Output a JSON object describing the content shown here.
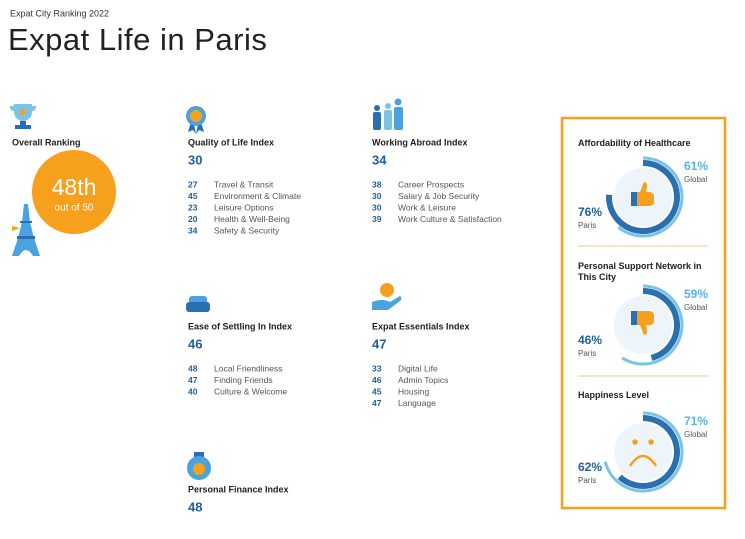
{
  "header": {
    "kicker": "Expat City Ranking 2022",
    "title": "Expat Life in Paris"
  },
  "overall": {
    "title": "Overall Ranking",
    "rank": "48th",
    "subtitle": "out of 50"
  },
  "indices": [
    {
      "title": "Quality of Life Index",
      "score": 30,
      "items": [
        {
          "score": 27,
          "label": "Travel & Transit"
        },
        {
          "score": 45,
          "label": "Environment & Climate"
        },
        {
          "score": 23,
          "label": "Leisure Options"
        },
        {
          "score": 20,
          "label": "Health & Well-Being"
        },
        {
          "score": 34,
          "label": "Safety & Security"
        }
      ]
    },
    {
      "title": "Working Abroad Index",
      "score": 34,
      "items": [
        {
          "score": 38,
          "label": "Career Prospects"
        },
        {
          "score": 30,
          "label": "Salary & Job Security"
        },
        {
          "score": 30,
          "label": "Work & Leisure"
        },
        {
          "score": 39,
          "label": "Work Culture & Satisfaction"
        }
      ]
    },
    {
      "title": "Ease of Settling In Index",
      "score": 46,
      "items": [
        {
          "score": 48,
          "label": "Local Friendliness"
        },
        {
          "score": 47,
          "label": "Finding Friends"
        },
        {
          "score": 40,
          "label": "Culture & Welcome"
        }
      ]
    },
    {
      "title": "Expat Essentials Index",
      "score": 47,
      "items": [
        {
          "score": 33,
          "label": "Digital Life"
        },
        {
          "score": 46,
          "label": "Admin Topics"
        },
        {
          "score": 45,
          "label": "Housing"
        },
        {
          "score": 47,
          "label": "Language"
        }
      ]
    },
    {
      "title": "Personal Finance Index",
      "score": 48,
      "items": []
    }
  ],
  "panel": [
    {
      "title": "Affordability of Healthcare",
      "global": {
        "value": 61,
        "label": "61%"
      },
      "global_label": "Global",
      "paris": {
        "value": 76,
        "label": "76%"
      },
      "paris_label": "Paris"
    },
    {
      "title": "Personal Support Network in This City",
      "global": {
        "value": 59,
        "label": "59%"
      },
      "global_label": "Global",
      "paris": {
        "value": 46,
        "label": "46%"
      },
      "paris_label": "Paris"
    },
    {
      "title": "Happiness Level",
      "global": {
        "value": 71,
        "label": "71%"
      },
      "global_label": "Global",
      "paris": {
        "value": 62,
        "label": "62%"
      },
      "paris_label": "Paris"
    }
  ]
}
